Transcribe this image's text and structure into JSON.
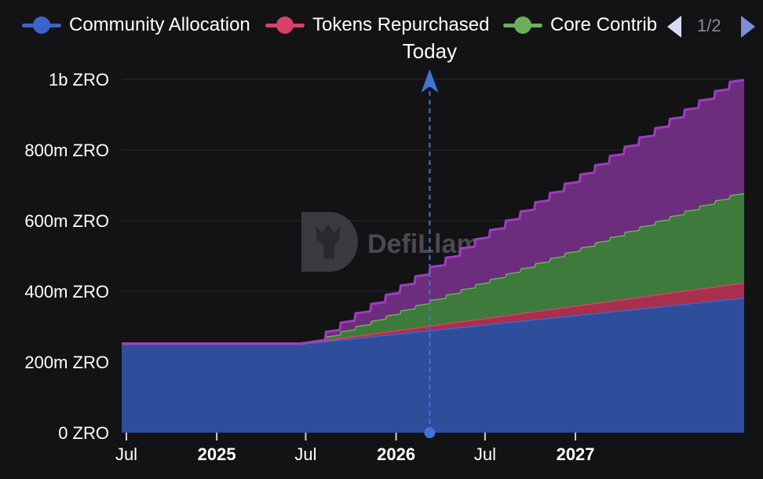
{
  "legend": {
    "items": [
      {
        "label": "Community Allocation",
        "color": "#3b63c8"
      },
      {
        "label": "Tokens Repurchased",
        "color": "#d94068"
      },
      {
        "label": "Core Contrib",
        "color": "#6cae5c"
      }
    ],
    "page": "1/2"
  },
  "watermark": "DefiLlama",
  "marker": {
    "label": "Today",
    "date": "2026-03-20"
  },
  "colors": {
    "community": "#2e4d9a",
    "community_line": "#3f66d0",
    "repurchased": "#a6304e",
    "repurchased_line": "#d94068",
    "core": "#3e7a3c",
    "core_line": "#6cae5c",
    "investors": "#6b2d7c",
    "investors_line": "#a03cc0",
    "marker": "#3f74d6"
  },
  "chart_data": {
    "type": "area",
    "stacked": true,
    "x_start": "2024-07-01",
    "x_end": "2027-12-20",
    "xticks": [
      {
        "label": "Jul",
        "date": "2024-07-01",
        "bold": false
      },
      {
        "label": "2025",
        "date": "2025-01-01",
        "bold": true
      },
      {
        "label": "Jul",
        "date": "2025-07-01",
        "bold": false
      },
      {
        "label": "2026",
        "date": "2026-01-01",
        "bold": true
      },
      {
        "label": "Jul",
        "date": "2026-07-01",
        "bold": false
      },
      {
        "label": "2027",
        "date": "2027-01-01",
        "bold": true
      }
    ],
    "yticks": [
      {
        "label": "0 ZRO",
        "value": 0
      },
      {
        "label": "200m ZRO",
        "value": 200000000
      },
      {
        "label": "400m ZRO",
        "value": 400000000
      },
      {
        "label": "600m ZRO",
        "value": 600000000
      },
      {
        "label": "800m ZRO",
        "value": 800000000
      },
      {
        "label": "1b ZRO",
        "value": 1000000000
      }
    ],
    "ylim": [
      0,
      1000000000
    ],
    "grid": true,
    "series": [
      {
        "name": "Community Allocation",
        "key": "community",
        "stepped": false,
        "points": [
          [
            "2024-07-01",
            252
          ],
          [
            "2025-07-01",
            252
          ],
          [
            "2027-12-20",
            382
          ]
        ]
      },
      {
        "name": "Tokens Repurchased",
        "key": "repurchased",
        "stepped": false,
        "points": [
          [
            "2024-07-01",
            0
          ],
          [
            "2025-07-01",
            0
          ],
          [
            "2025-08-20",
            3
          ],
          [
            "2027-12-20",
            43
          ]
        ]
      },
      {
        "name": "Core Contrib",
        "key": "core",
        "stepped": true,
        "step_start": "2025-08-20",
        "step_end": "2027-12-20",
        "step_count": 28,
        "points": [
          [
            "2024-07-01",
            0
          ],
          [
            "2025-08-20",
            0
          ],
          [
            "2025-08-21",
            10
          ],
          [
            "2027-12-20",
            253
          ]
        ]
      },
      {
        "name": "",
        "key": "investors",
        "stepped": true,
        "step_start": "2025-08-20",
        "step_end": "2027-12-20",
        "step_count": 28,
        "points": [
          [
            "2024-07-01",
            0
          ],
          [
            "2025-08-20",
            0
          ],
          [
            "2025-08-21",
            13
          ],
          [
            "2027-12-20",
            320
          ]
        ]
      }
    ],
    "units": "millions ZRO"
  }
}
